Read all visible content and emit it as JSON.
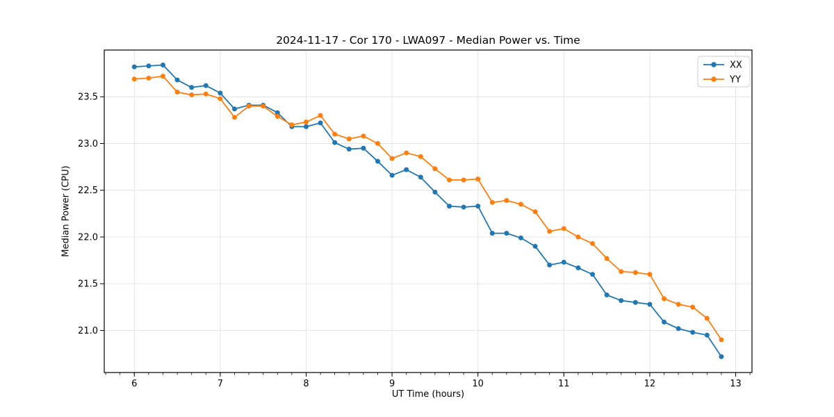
{
  "chart_data": {
    "type": "line",
    "title": "2024-11-17 - Cor 170 - LWA097 - Median Power vs. Time",
    "xlabel": "UT Time (hours)",
    "ylabel": "Median Power (CPU)",
    "x": [
      6.0,
      6.1667,
      6.3333,
      6.5,
      6.6667,
      6.8333,
      7.0,
      7.1667,
      7.3333,
      7.5,
      7.6667,
      7.8333,
      8.0,
      8.1667,
      8.3333,
      8.5,
      8.6667,
      8.8333,
      9.0,
      9.1667,
      9.3333,
      9.5,
      9.6667,
      9.8333,
      10.0,
      10.1667,
      10.3333,
      10.5,
      10.6667,
      10.8333,
      11.0,
      11.1667,
      11.3333,
      11.5,
      11.6667,
      11.8333,
      12.0,
      12.1667,
      12.3333,
      12.5,
      12.6667,
      12.8333
    ],
    "series": [
      {
        "name": "XX",
        "color": "#1f77b4",
        "values": [
          23.82,
          23.83,
          23.84,
          23.68,
          23.6,
          23.62,
          23.54,
          23.37,
          23.41,
          23.41,
          23.33,
          23.18,
          23.18,
          23.22,
          23.01,
          22.94,
          22.95,
          22.81,
          22.66,
          22.72,
          22.64,
          22.48,
          22.33,
          22.32,
          22.33,
          22.04,
          22.04,
          21.99,
          21.9,
          21.7,
          21.73,
          21.67,
          21.6,
          21.38,
          21.32,
          21.3,
          21.28,
          21.09,
          21.02,
          20.98,
          20.95,
          20.72
        ]
      },
      {
        "name": "YY",
        "color": "#ff7f0e",
        "values": [
          23.69,
          23.7,
          23.72,
          23.55,
          23.52,
          23.53,
          23.48,
          23.28,
          23.4,
          23.4,
          23.29,
          23.2,
          23.23,
          23.3,
          23.1,
          23.05,
          23.08,
          23.0,
          22.84,
          22.9,
          22.86,
          22.73,
          22.61,
          22.61,
          22.62,
          22.37,
          22.39,
          22.35,
          22.27,
          22.06,
          22.09,
          22.0,
          21.93,
          21.77,
          21.63,
          21.62,
          21.6,
          21.34,
          21.28,
          21.25,
          21.13,
          20.9
        ]
      }
    ],
    "xlim": [
      5.65,
      13.19
    ],
    "ylim": [
      20.55,
      24.0
    ],
    "xticks": [
      6,
      7,
      8,
      9,
      10,
      11,
      12,
      13
    ],
    "xtick_labels": [
      "6",
      "7",
      "8",
      "9",
      "10",
      "11",
      "12",
      "13"
    ],
    "yticks": [
      21.0,
      21.5,
      22.0,
      22.5,
      23.0,
      23.5
    ],
    "ytick_labels": [
      "21.0",
      "21.5",
      "22.0",
      "22.5",
      "23.0",
      "23.5"
    ],
    "x_minor_step": 0.166667,
    "grid": true,
    "legend": {
      "position": "upper right",
      "entries": [
        "XX",
        "YY"
      ]
    },
    "marker": "o"
  },
  "styles": {
    "background": "#ffffff",
    "grid_color": "#e4e4e4",
    "spine_color": "#000000",
    "tick_color": "#000000",
    "text_color": "#000000",
    "legend_border": "#cccccc",
    "legend_bg": "#ffffff"
  }
}
